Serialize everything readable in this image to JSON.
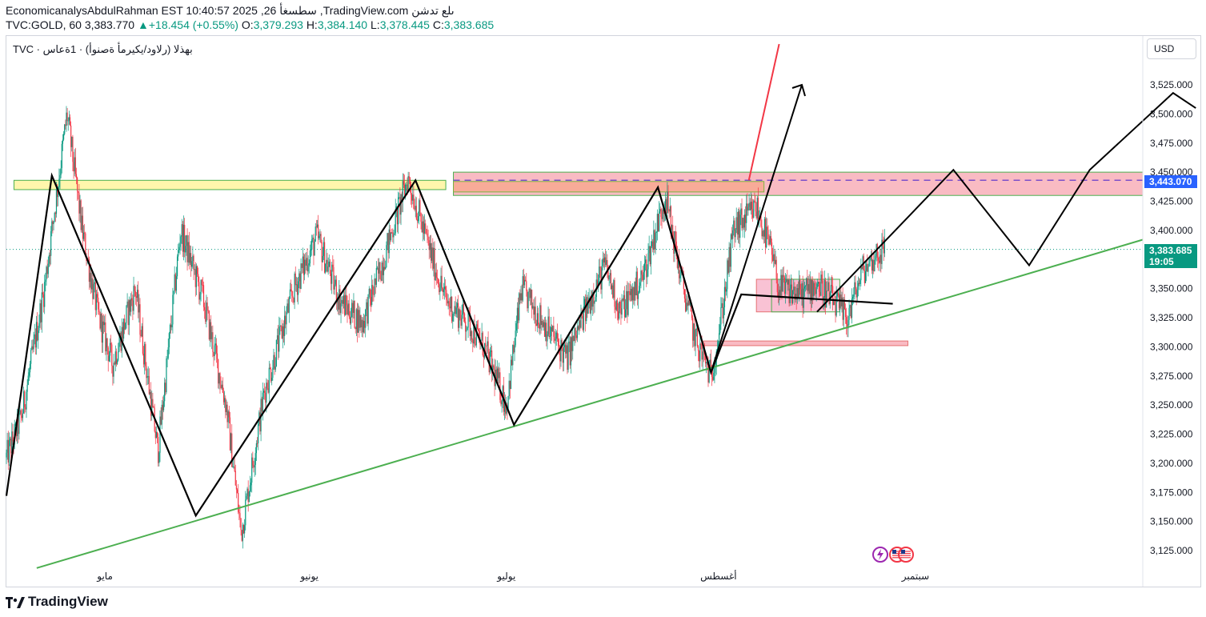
{
  "header": {
    "line1": "EconomicanalysAbdulRahman EST 10:40:57 2025 ,26 سطسغأ ,TradingView.com ىلع تدشن",
    "symbol": "TVC:GOLD, 60",
    "last": "3,383.770",
    "change": "+18.454 (+0.55%)",
    "o_label": "O:",
    "o_val": "3,379.293",
    "h_label": "H:",
    "h_val": "3,384.140",
    "l_label": "L:",
    "l_val": "3,378.445",
    "c_label": "C:",
    "c_val": "3,383.685"
  },
  "legend": "TVC · بهذلا (رلاود/يكيرمأ ةصنوأ) · 1ةعاس",
  "currency": "USD",
  "footer_brand": "TradingView",
  "price_tags": {
    "level": "3,443.070",
    "current": "3,383.685",
    "countdown": "19:05"
  },
  "colors": {
    "up": "#089981",
    "down": "#f23645",
    "blue_tag": "#2962ff",
    "green_tag": "#089981",
    "trend_green": "#4caf50",
    "red_arrow": "#f23645"
  },
  "chart_data": {
    "type": "candlestick",
    "title": "TVC:GOLD, 60",
    "ylim": [
      3105,
      3555
    ],
    "y_ticks": [
      "3,125.000",
      "3,150.000",
      "3,175.000",
      "3,200.000",
      "3,225.000",
      "3,250.000",
      "3,275.000",
      "3,300.000",
      "3,325.000",
      "3,350.000",
      "3,375.000",
      "3,400.000",
      "3,425.000",
      "3,450.000",
      "3,475.000",
      "3,500.000",
      "3,525.000"
    ],
    "y_tick_values": [
      3125,
      3150,
      3175,
      3200,
      3225,
      3250,
      3275,
      3300,
      3325,
      3350,
      3375,
      3400,
      3425,
      3450,
      3475,
      3500,
      3525
    ],
    "x_labels": [
      "مايو",
      "يونيو",
      "يوليو",
      "أغسطس",
      "سبتمبر"
    ],
    "x_label_days": [
      8,
      35,
      61,
      89,
      115
    ],
    "x_range_days": [
      -5,
      145
    ],
    "price_path_days": [
      -5,
      -3,
      0,
      3,
      5,
      7,
      9,
      12,
      15,
      18,
      21,
      24,
      26,
      29,
      33,
      36,
      39,
      42,
      45,
      48,
      51,
      53,
      56,
      58,
      61,
      63,
      66,
      69,
      72,
      74,
      76,
      79,
      82,
      84,
      86,
      88,
      89,
      91,
      94,
      96,
      97,
      100,
      102,
      104,
      106,
      108,
      110,
      111
    ],
    "price_path_values": [
      3205,
      3240,
      3350,
      3500,
      3400,
      3330,
      3285,
      3350,
      3210,
      3400,
      3340,
      3250,
      3140,
      3260,
      3350,
      3395,
      3340,
      3320,
      3380,
      3445,
      3380,
      3340,
      3320,
      3300,
      3250,
      3350,
      3320,
      3290,
      3340,
      3370,
      3330,
      3360,
      3430,
      3360,
      3305,
      3275,
      3310,
      3400,
      3420,
      3380,
      3350,
      3345,
      3355,
      3340,
      3325,
      3365,
      3380,
      3383.685
    ],
    "last_close": 3383.685,
    "reference_level": 3443.07,
    "zones": [
      {
        "name": "yellow-resistance",
        "x_days": [
          -4,
          53
        ],
        "y": [
          3435,
          3443
        ]
      },
      {
        "name": "pink-resistance",
        "x_days": [
          54,
          145
        ],
        "y": [
          3430,
          3450
        ]
      },
      {
        "name": "orange-zone",
        "x_days": [
          54,
          95
        ],
        "y": [
          3433,
          3442
        ]
      },
      {
        "name": "pink-consolidation-box",
        "x_days": [
          94,
          103
        ],
        "y": [
          3330,
          3358
        ]
      },
      {
        "name": "green-box",
        "x_days": [
          96,
          105
        ],
        "y": [
          3330,
          3358
        ]
      },
      {
        "name": "pink-support-strip",
        "x_days": [
          87,
          114
        ],
        "y": [
          3301,
          3305
        ]
      }
    ],
    "trendline_green": {
      "days": [
        -1,
        145
      ],
      "values": [
        3110,
        3392
      ]
    },
    "zigzag_black": {
      "days": [
        -5,
        1,
        20,
        49,
        62,
        81,
        88,
        92,
        112
      ],
      "values": [
        3172,
        3447,
        3155,
        3443,
        3233,
        3437,
        3278,
        3345,
        3337
      ]
    },
    "zigzag_projection": [
      {
        "days": [
          88,
          100
        ],
        "values": [
          3278,
          3525
        ]
      },
      {
        "days": [
          102,
          120,
          130,
          138,
          149,
          152
        ],
        "values": [
          3330,
          3452,
          3370,
          3452,
          3518,
          3505
        ]
      }
    ],
    "red_arrow": {
      "days": [
        93,
        97
      ],
      "values": [
        3443,
        3560
      ]
    }
  }
}
